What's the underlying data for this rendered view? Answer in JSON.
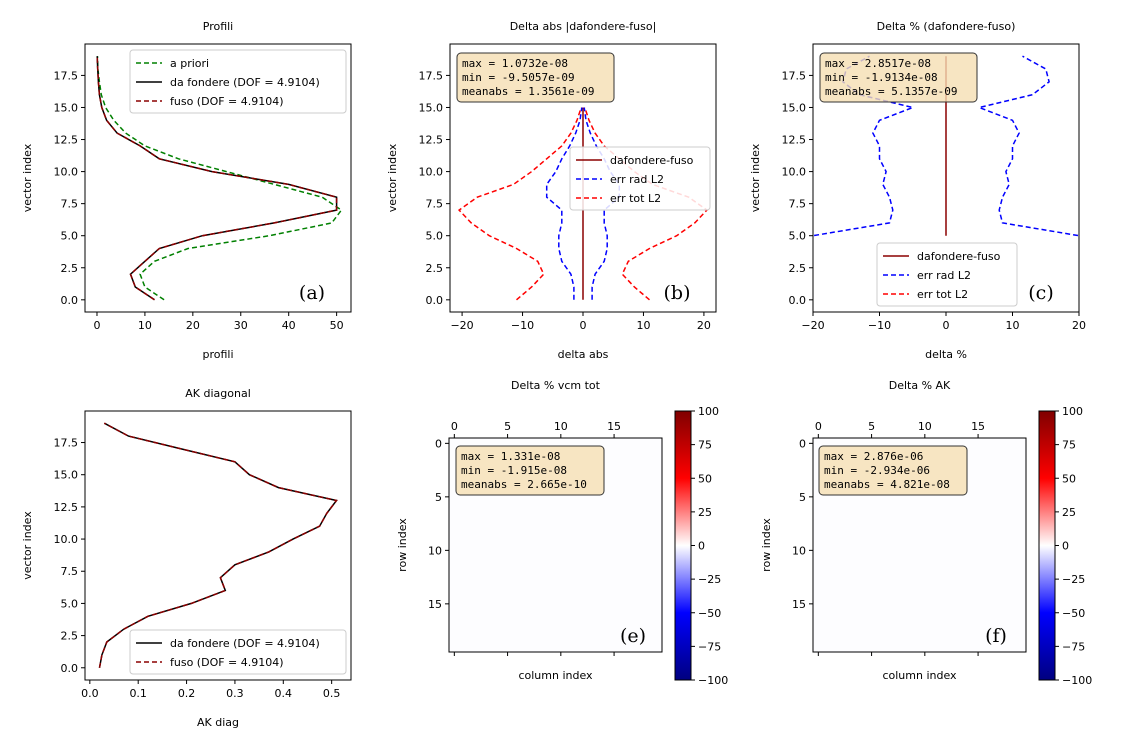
{
  "chart_data": [
    {
      "panel": "a",
      "type": "line",
      "title": "Profili",
      "xlabel": "profili",
      "ylabel": "vector index",
      "xlim": [
        -2.5,
        53
      ],
      "ylim": [
        -0.95,
        19.95
      ],
      "xticks": [
        0,
        10,
        20,
        30,
        40,
        50
      ],
      "yticks": [
        0.0,
        2.5,
        5.0,
        7.5,
        10.0,
        12.5,
        15.0,
        17.5
      ],
      "legend_position": "upper-right",
      "panel_label": "(a)",
      "series": [
        {
          "name": "a priori",
          "color": "#008000",
          "style": "dashed",
          "x": [
            14,
            10,
            9,
            12,
            19,
            36,
            49,
            51,
            47,
            37,
            27,
            17,
            10,
            6,
            3.5,
            1.8,
            0.9,
            0.5,
            0.2,
            0.1
          ],
          "y": [
            0,
            1,
            2,
            3,
            4,
            5,
            6,
            7,
            8,
            9,
            10,
            11,
            12,
            13,
            14,
            15,
            16,
            17,
            18,
            19
          ]
        },
        {
          "name": "da fondere (DOF = 4.9104)",
          "color": "#000000",
          "style": "solid",
          "x": [
            12,
            8,
            7,
            10,
            13,
            22,
            37,
            50,
            50,
            40,
            24,
            13,
            9,
            4.2,
            2,
            1,
            0.5,
            0.3,
            0.15,
            0.05
          ],
          "y": [
            0,
            1,
            2,
            3,
            4,
            5,
            6,
            7,
            8,
            9,
            10,
            11,
            12,
            13,
            14,
            15,
            16,
            17,
            18,
            19
          ]
        },
        {
          "name": "fuso       (DOF = 4.9104)",
          "color": "#8b0000",
          "style": "dashed",
          "x": [
            12,
            8,
            7,
            10,
            13,
            22,
            37,
            50,
            50,
            40,
            24,
            13,
            9,
            4.2,
            2,
            1,
            0.5,
            0.3,
            0.15,
            0.05
          ],
          "y": [
            0,
            1,
            2,
            3,
            4,
            5,
            6,
            7,
            8,
            9,
            10,
            11,
            12,
            13,
            14,
            15,
            16,
            17,
            18,
            19
          ]
        }
      ]
    },
    {
      "panel": "b",
      "type": "line",
      "title": "Delta abs |dafondere-fuso|",
      "xlabel": "delta abs",
      "ylabel": "vector index",
      "xlim": [
        -22,
        22
      ],
      "ylim": [
        -0.95,
        19.95
      ],
      "xticks": [
        -20,
        -10,
        0,
        10,
        20
      ],
      "yticks": [
        0.0,
        2.5,
        5.0,
        7.5,
        10.0,
        12.5,
        15.0,
        17.5
      ],
      "legend_position": "center-right",
      "panel_label": "(b)",
      "stats": [
        "max  = 1.0732e-08",
        "min  = -9.5057e-09",
        "meanabs = 1.3561e-09"
      ],
      "series": [
        {
          "name": "dafondere-fuso",
          "color": "#8b0000",
          "style": "solid",
          "x": [
            0,
            0,
            0,
            0,
            0,
            0,
            0,
            0,
            0,
            0,
            0,
            0,
            0,
            0,
            0,
            0
          ],
          "y": [
            0,
            1,
            2,
            3,
            4,
            5,
            6,
            7,
            8,
            9,
            10,
            11,
            12,
            13,
            14,
            15
          ]
        },
        {
          "name": "err rad L2",
          "color": "#0000ff",
          "style": "dashed",
          "mirror": true,
          "x": [
            1.5,
            1.5,
            2.0,
            3.5,
            4.0,
            4.0,
            3.5,
            3.5,
            6.0,
            6.0,
            4.5,
            3.5,
            2.2,
            1.2,
            0.5,
            0.2
          ],
          "y": [
            0,
            1,
            2,
            3,
            4,
            5,
            6,
            7,
            8,
            9,
            10,
            11,
            12,
            13,
            14,
            15
          ]
        },
        {
          "name": "err tot L2",
          "color": "#ff0000",
          "style": "dashed",
          "mirror": true,
          "x": [
            11.0,
            8.5,
            6.5,
            7.5,
            11.0,
            15.5,
            18.5,
            20.5,
            17.5,
            11.5,
            8.5,
            6.0,
            3.5,
            2.0,
            1.0,
            0.3
          ],
          "y": [
            0,
            1,
            2,
            3,
            4,
            5,
            6,
            7,
            8,
            9,
            10,
            11,
            12,
            13,
            14,
            15
          ]
        }
      ]
    },
    {
      "panel": "c",
      "type": "line",
      "title": "Delta % (dafondere-fuso)",
      "xlabel": "delta %",
      "ylabel": "vector index",
      "xlim": [
        -20,
        20
      ],
      "ylim": [
        -0.95,
        19.95
      ],
      "xticks": [
        -20,
        -10,
        0,
        10,
        20
      ],
      "yticks": [
        0.0,
        2.5,
        5.0,
        7.5,
        10.0,
        12.5,
        15.0,
        17.5
      ],
      "legend_position": "lower-center",
      "panel_label": "(c)",
      "stats": [
        "max  = 2.8517e-08",
        "min  = -1.9134e-08",
        "meanabs = 5.1357e-09"
      ],
      "series": [
        {
          "name": "dafondere-fuso",
          "color": "#8b0000",
          "style": "solid",
          "x": [
            0,
            0,
            0,
            0,
            0,
            0,
            0,
            0,
            0,
            0,
            0,
            0,
            0,
            0,
            0
          ],
          "y": [
            5,
            6,
            7,
            8,
            9,
            10,
            11,
            12,
            13,
            14,
            15,
            16,
            17,
            18,
            19
          ]
        },
        {
          "name": "err rad L2",
          "color": "#0000ff",
          "style": "dashed",
          "mirror": true,
          "x": [
            25,
            25,
            25,
            25,
            25,
            20,
            8.5,
            8,
            8.5,
            9.5,
            9,
            10,
            10,
            11,
            10,
            5,
            13,
            15.5,
            15,
            11.5
          ],
          "y": [
            0,
            1,
            2,
            3,
            4,
            5,
            6,
            7,
            8,
            9,
            10,
            11,
            12,
            13,
            14,
            15,
            16,
            17,
            18,
            19
          ]
        },
        {
          "name": "err tot L2",
          "color": "#ff0000",
          "style": "dashed",
          "mirror": true,
          "x": [],
          "y": []
        }
      ]
    },
    {
      "panel": "d",
      "type": "line",
      "title": "AK diagonal",
      "xlabel": "AK diag",
      "ylabel": "vector index",
      "xlim": [
        -0.01,
        0.54
      ],
      "ylim": [
        -0.95,
        19.95
      ],
      "xticks": [
        0.0,
        0.1,
        0.2,
        0.3,
        0.4,
        0.5
      ],
      "yticks": [
        0.0,
        2.5,
        5.0,
        7.5,
        10.0,
        12.5,
        15.0,
        17.5
      ],
      "legend_position": "lower-right",
      "series": [
        {
          "name": "da fondere (DOF = 4.9104)",
          "color": "#000000",
          "style": "solid",
          "x": [
            0.02,
            0.025,
            0.035,
            0.07,
            0.12,
            0.21,
            0.28,
            0.27,
            0.3,
            0.37,
            0.42,
            0.475,
            0.49,
            0.51,
            0.39,
            0.33,
            0.3,
            0.19,
            0.08,
            0.03
          ],
          "y": [
            0,
            1,
            2,
            3,
            4,
            5,
            6,
            7,
            8,
            9,
            10,
            11,
            12,
            13,
            14,
            15,
            16,
            17,
            18,
            19
          ]
        },
        {
          "name": "fuso       (DOF = 4.9104)",
          "color": "#8b0000",
          "style": "dashed",
          "x": [
            0.02,
            0.025,
            0.035,
            0.07,
            0.12,
            0.21,
            0.28,
            0.27,
            0.3,
            0.37,
            0.42,
            0.475,
            0.49,
            0.51,
            0.39,
            0.33,
            0.3,
            0.19,
            0.08,
            0.03
          ],
          "y": [
            0,
            1,
            2,
            3,
            4,
            5,
            6,
            7,
            8,
            9,
            10,
            11,
            12,
            13,
            14,
            15,
            16,
            17,
            18,
            19
          ]
        }
      ]
    },
    {
      "panel": "e",
      "type": "heatmap",
      "title": "Delta % vcm tot",
      "xlabel": "column index",
      "ylabel": "row index",
      "xticks": [
        0,
        5,
        10,
        15
      ],
      "yticks": [
        0,
        5,
        10,
        15
      ],
      "matrix_size": 20,
      "value_approx": 0,
      "colorbar": {
        "min": -100,
        "max": 100,
        "ticks": [
          100,
          75,
          50,
          25,
          0,
          -25,
          -50,
          -75,
          -100
        ],
        "colors": [
          "#000080",
          "#0000ff",
          "#ffffff",
          "#ff0000",
          "#800000"
        ]
      },
      "panel_label": "(e)",
      "stats": [
        "max  = 1.331e-08",
        "min  = -1.915e-08",
        "meanabs = 2.665e-10"
      ]
    },
    {
      "panel": "f",
      "type": "heatmap",
      "title": "Delta % AK",
      "xlabel": "column index",
      "ylabel": "row index",
      "xticks": [
        0,
        5,
        10,
        15
      ],
      "yticks": [
        0,
        5,
        10,
        15
      ],
      "matrix_size": 20,
      "value_approx": 0,
      "colorbar": {
        "min": -100,
        "max": 100,
        "ticks": [
          100,
          75,
          50,
          25,
          0,
          -25,
          -50,
          -75,
          -100
        ],
        "colors": [
          "#000080",
          "#0000ff",
          "#ffffff",
          "#ff0000",
          "#800000"
        ]
      },
      "panel_label": "(f)",
      "stats": [
        "max  = 2.876e-06",
        "min  = -2.934e-06",
        "meanabs = 4.821e-08"
      ]
    }
  ],
  "colors": {
    "stats_box_fill": "#f5deb3",
    "axis": "#000000"
  }
}
